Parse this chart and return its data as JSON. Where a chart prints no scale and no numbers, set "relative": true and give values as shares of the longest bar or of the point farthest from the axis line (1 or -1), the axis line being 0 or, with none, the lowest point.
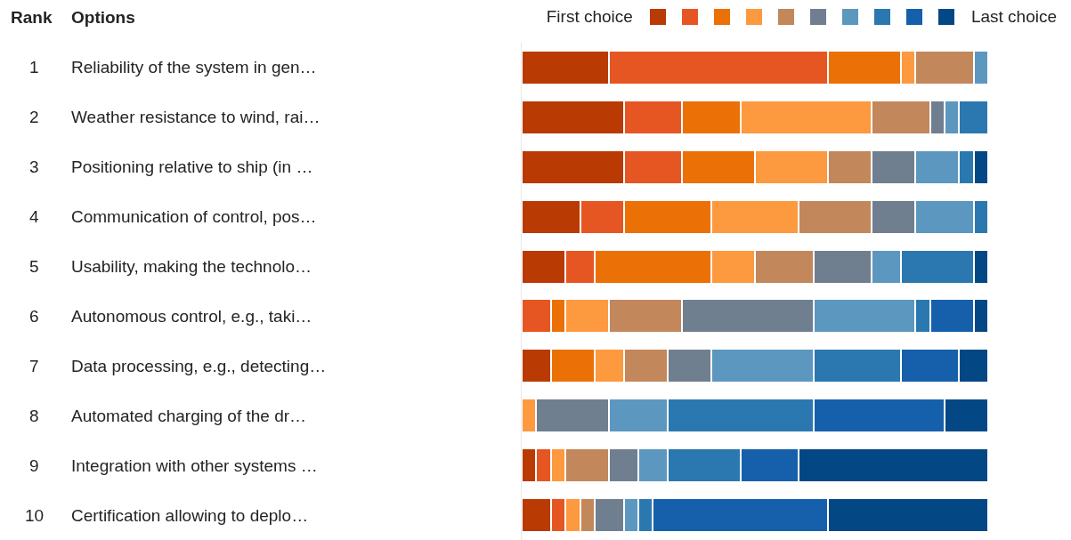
{
  "chart_data": {
    "type": "bar",
    "orientation": "horizontal",
    "stacked": true,
    "relative": true,
    "grid": false,
    "categories": [
      "Reliability of the system in gen…",
      "Weather resistance to wind, rai…",
      "Positioning relative to ship (in …",
      "Communication of control, pos…",
      "Usability, making the technolo…",
      "Autonomous control, e.g., taki…",
      "Data processing, e.g., detecting…",
      "Automated charging of the dr…",
      "Integration with other systems …",
      "Certification allowing to deplo…"
    ],
    "annotations": [
      "Rank",
      "Options",
      "First choice",
      "Last choice",
      "1",
      "2",
      "3",
      "4",
      "5",
      "6",
      "7",
      "8",
      "9",
      "10"
    ],
    "series": [
      {
        "color": "#b93a02",
        "values": [
          0.1875,
          0.21875,
          0.21875,
          0.125,
          0.09375,
          0,
          0.0625,
          0,
          0.03125,
          0.0625
        ]
      },
      {
        "color": "#e55623",
        "values": [
          0.46875,
          0.125,
          0.125,
          0.09375,
          0.0625,
          0.0625,
          0,
          0,
          0.03125,
          0.03125
        ]
      },
      {
        "color": "#eb7006",
        "values": [
          0.15625,
          0.125,
          0.15625,
          0.1875,
          0.25,
          0.03125,
          0.09375,
          0,
          0,
          0
        ]
      },
      {
        "color": "#fd993e",
        "values": [
          0.03125,
          0.28125,
          0.15625,
          0.1875,
          0.09375,
          0.09375,
          0.0625,
          0.03125,
          0.03125,
          0.03125
        ]
      },
      {
        "color": "#c2875b",
        "values": [
          0.125,
          0.125,
          0.09375,
          0.15625,
          0.125,
          0.15625,
          0.09375,
          0,
          0.09375,
          0.03125
        ]
      },
      {
        "color": "#707f8f",
        "values": [
          0,
          0.03125,
          0.09375,
          0.09375,
          0.125,
          0.28125,
          0.09375,
          0.15625,
          0.0625,
          0.0625
        ]
      },
      {
        "color": "#5c97c0",
        "values": [
          0.03125,
          0.03125,
          0.09375,
          0.125,
          0.0625,
          0.21875,
          0.21875,
          0.125,
          0.0625,
          0.03125
        ]
      },
      {
        "color": "#2b78b0",
        "values": [
          0,
          0.0625,
          0.03125,
          0.03125,
          0.15625,
          0.03125,
          0.1875,
          0.3125,
          0.15625,
          0.03125
        ]
      },
      {
        "color": "#1660ab",
        "values": [
          0,
          0,
          0,
          0,
          0,
          0.09375,
          0.125,
          0.28125,
          0.125,
          0.375
        ]
      },
      {
        "color": "#034884",
        "values": [
          0,
          0,
          0.03125,
          0,
          0.03125,
          0.03125,
          0.0625,
          0.09375,
          0.40625,
          0.34375
        ]
      }
    ]
  }
}
